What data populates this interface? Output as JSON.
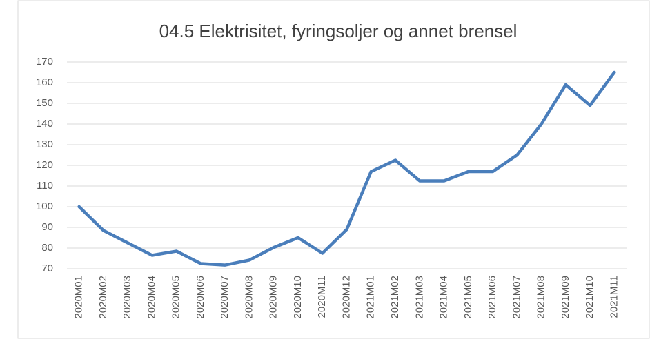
{
  "chart_data": {
    "type": "line",
    "title": "04.5 Elektrisitet, fyringsoljer og annet brensel",
    "categories": [
      "2020M01",
      "2020M02",
      "2020M03",
      "2020M04",
      "2020M05",
      "2020M06",
      "2020M07",
      "2020M08",
      "2020M09",
      "2020M10",
      "2020M11",
      "2020M12",
      "2021M01",
      "2021M02",
      "2021M03",
      "2021M04",
      "2021M05",
      "2021M06",
      "2021M07",
      "2021M08",
      "2021M09",
      "2021M10",
      "2021M11"
    ],
    "series": [
      {
        "name": "04.5 Elektrisitet, fyringsoljer og annet brensel",
        "color": "#4a7ebb",
        "values": [
          100,
          88.5,
          82.5,
          76.5,
          78.5,
          72.5,
          71.8,
          74.2,
          80.3,
          85,
          77.5,
          89,
          117,
          122.5,
          112.5,
          112.5,
          117,
          117,
          125,
          140,
          159,
          149,
          165
        ]
      }
    ],
    "ylim": [
      70,
      170
    ],
    "yticks": [
      70,
      80,
      90,
      100,
      110,
      120,
      130,
      140,
      150,
      160,
      170
    ],
    "grid": true
  }
}
